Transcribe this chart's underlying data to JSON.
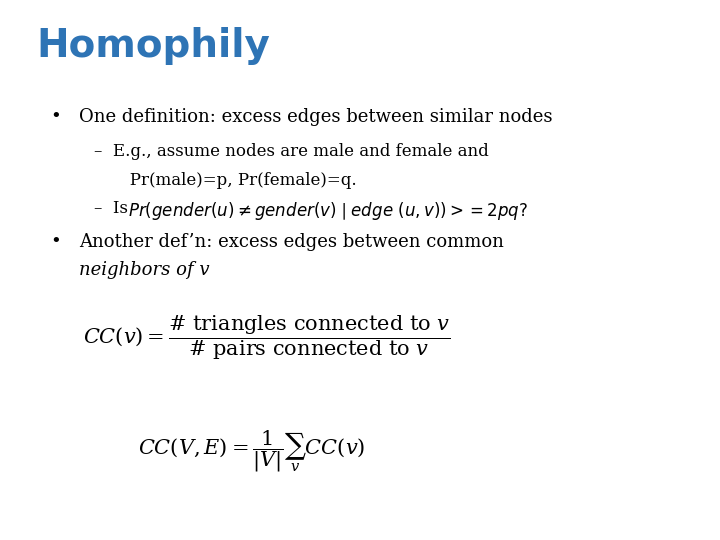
{
  "title": "Homophily",
  "title_color": "#2E74B5",
  "title_fontsize": 28,
  "bg_color": "#FFFFFF",
  "bullet1": "One definition: excess edges between similar nodes",
  "sub1a_line1": "–  E.g., assume nodes are male and female and",
  "sub1a_line2": "   Pr(male)=p, Pr(female)=q.",
  "bullet2_line1": "Another def’n: excess edges between common",
  "bullet2_line2": "neighbors of v",
  "text_color": "#000000",
  "body_fontsize": 13,
  "formula1_fontsize": 15,
  "formula2_fontsize": 15
}
